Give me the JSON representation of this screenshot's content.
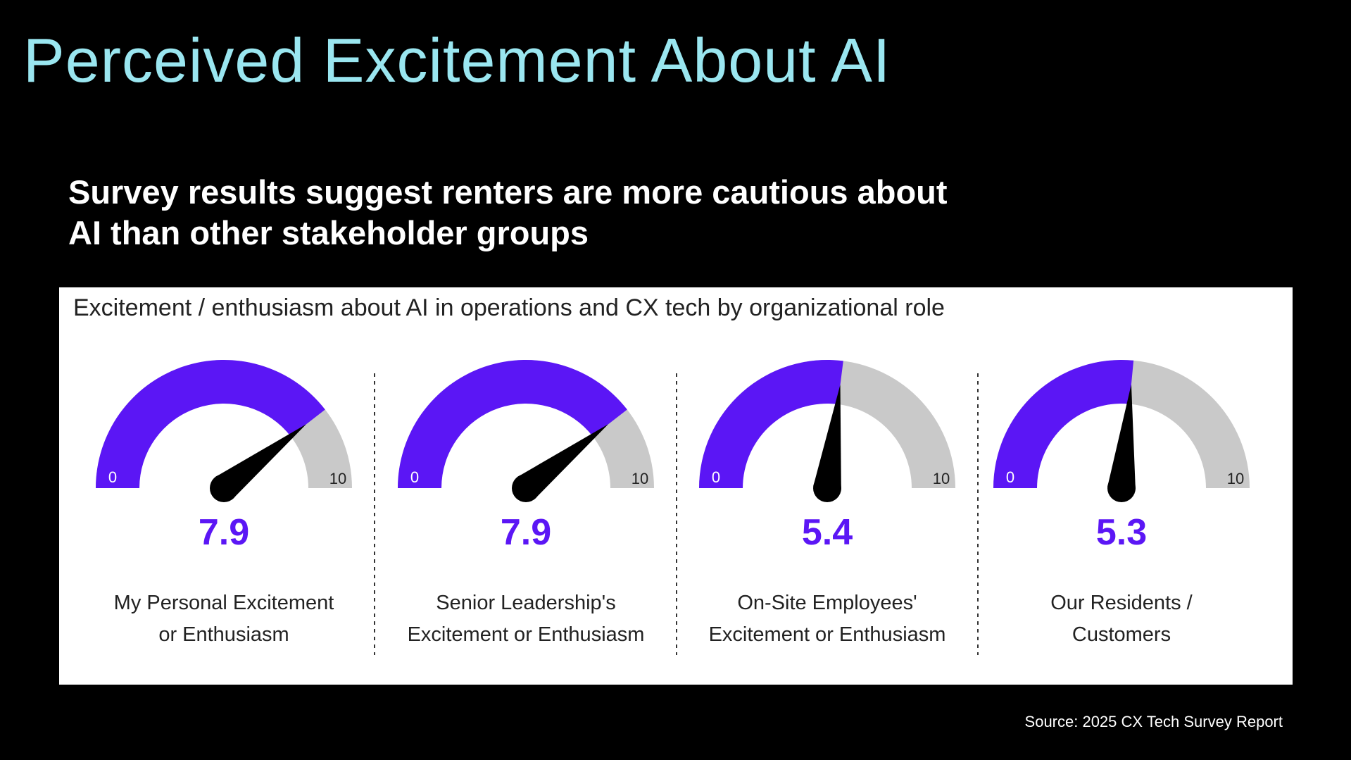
{
  "slide": {
    "title": "Perceived Excitement About AI",
    "subtitle_lines": [
      "Survey results suggest renters are more cautious about",
      "AI than other stakeholder groups"
    ],
    "source": "Source: 2025 CX Tech Survey Report"
  },
  "colors": {
    "background": "#000000",
    "title": "#9AE6F0",
    "gauge_fill": "#5B16F5",
    "gauge_track": "#C9C9C9",
    "needle": "#000000",
    "value_text": "#5B16F5",
    "divider": "#333333"
  },
  "chart_data": {
    "type": "gauge",
    "title": "Excitement / enthusiasm about AI in operations and CX tech by organizational role",
    "min": 0,
    "max": 10,
    "min_label": "0",
    "max_label": "10",
    "gauges": [
      {
        "value": 7.9,
        "value_label": "7.9",
        "label_lines": [
          "My Personal Excitement",
          "or Enthusiasm"
        ]
      },
      {
        "value": 7.9,
        "value_label": "7.9",
        "label_lines": [
          "Senior Leadership's",
          "Excitement or Enthusiasm"
        ]
      },
      {
        "value": 5.4,
        "value_label": "5.4",
        "label_lines": [
          "On-Site Employees'",
          "Excitement or Enthusiasm"
        ]
      },
      {
        "value": 5.3,
        "value_label": "5.3",
        "label_lines": [
          "Our Residents /",
          "Customers"
        ]
      }
    ]
  }
}
